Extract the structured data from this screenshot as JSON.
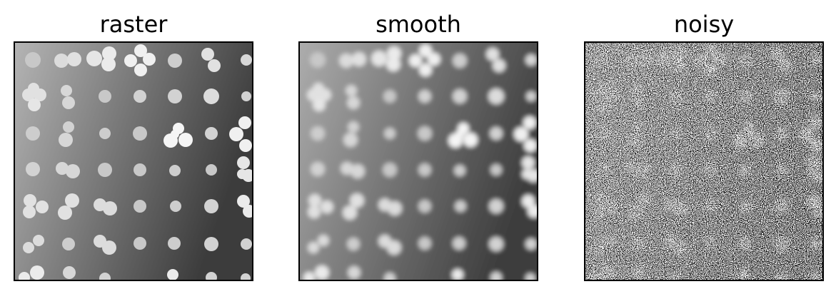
{
  "panels": [
    {
      "id": "raster",
      "title": "raster"
    },
    {
      "id": "smooth",
      "title": "smooth"
    },
    {
      "id": "noisy",
      "title": "noisy"
    }
  ],
  "image": {
    "background_gradient": [
      "#b4b4b4",
      "#3c3c3c"
    ]
  }
}
